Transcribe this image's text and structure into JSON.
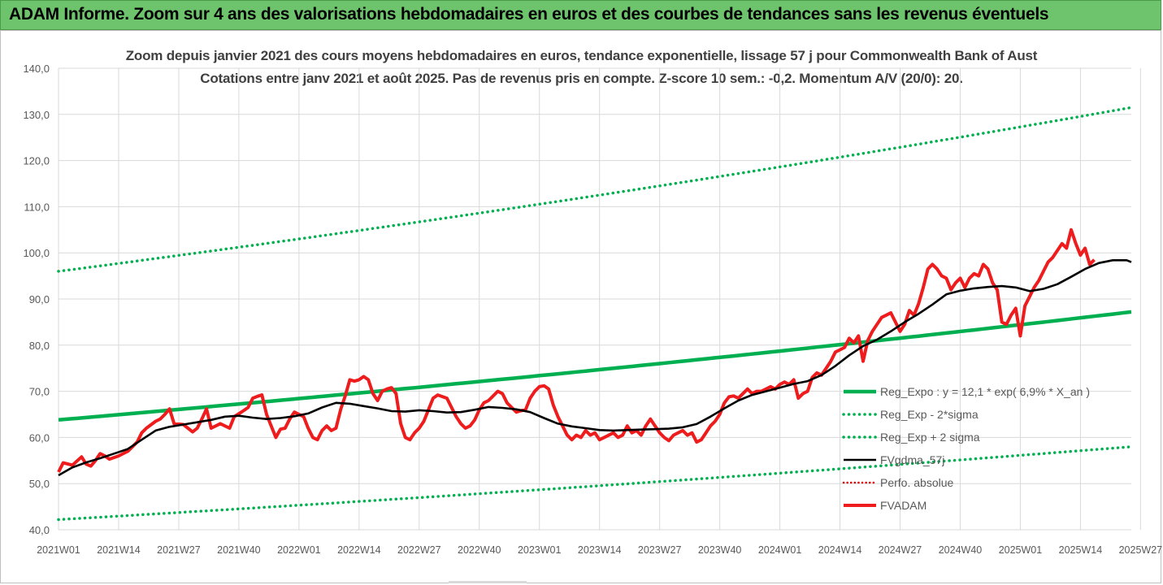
{
  "header": {
    "title": "ADAM Informe. Zoom sur 4 ans des valorisations hebdomadaires en euros et des courbes de tendances sans les revenus éventuels"
  },
  "chart_data": {
    "type": "line",
    "title": "Zoom depuis janvier 2021 des cours moyens hebdomadaires en euros, tendance exponentielle, lissage 57 j pour Commonwealth Bank of Aust",
    "subtitle": "Cotations entre janv 2021 et août 2025.  Pas de revenus pris en compte. Z-score 10 sem.: -0,2. Momentum A/V (20/0): 20.",
    "ylim": [
      40,
      140
    ],
    "yticks": [
      "40,0",
      "50,0",
      "60,0",
      "70,0",
      "80,0",
      "90,0",
      "100,0",
      "110,0",
      "120,0",
      "130,0",
      "140,0"
    ],
    "xticks": [
      "2021W01",
      "2021W14",
      "2021W27",
      "2021W40",
      "2022W01",
      "2022W14",
      "2022W27",
      "2022W40",
      "2023W01",
      "2023W14",
      "2023W27",
      "2023W40",
      "2024W01",
      "2024W14",
      "2024W27",
      "2024W40",
      "2025W01",
      "2025W14",
      "2025W27"
    ],
    "grid": true,
    "legend_position": "right",
    "series": [
      {
        "name": "Reg_Expo : y = 12,1 * exp( 6,9% *  X_an )",
        "color": "#00b050",
        "style": "solid",
        "start": 63.8,
        "end": 87.2
      },
      {
        "name": "Reg_Exp - 2*sigma",
        "color": "#00b050",
        "style": "dotted",
        "start": 42.2,
        "end": 58.0
      },
      {
        "name": "Reg_Exp + 2 sigma",
        "color": "#00b050",
        "style": "dotted",
        "start": 96.0,
        "end": 131.5
      },
      {
        "name": "FVgdma_57j",
        "color": "#000000",
        "style": "solid",
        "points": [
          [
            0,
            51.8
          ],
          [
            3,
            53.5
          ],
          [
            6,
            54.6
          ],
          [
            9,
            55.5
          ],
          [
            12,
            56.5
          ],
          [
            15,
            57.5
          ],
          [
            18,
            59.5
          ],
          [
            21,
            61.5
          ],
          [
            24,
            62.3
          ],
          [
            27,
            62.8
          ],
          [
            30,
            63.3
          ],
          [
            33,
            63.8
          ],
          [
            36,
            64.5
          ],
          [
            39,
            64.7
          ],
          [
            42,
            64.3
          ],
          [
            45,
            64.0
          ],
          [
            48,
            64.2
          ],
          [
            51,
            64.6
          ],
          [
            54,
            65.2
          ],
          [
            57,
            66.5
          ],
          [
            60,
            67.5
          ],
          [
            63,
            67.3
          ],
          [
            66,
            66.8
          ],
          [
            69,
            66.3
          ],
          [
            72,
            65.7
          ],
          [
            75,
            65.6
          ],
          [
            78,
            65.9
          ],
          [
            81,
            65.7
          ],
          [
            84,
            65.4
          ],
          [
            87,
            65.5
          ],
          [
            90,
            66.0
          ],
          [
            93,
            66.6
          ],
          [
            96,
            66.4
          ],
          [
            99,
            66.1
          ],
          [
            102,
            65.5
          ],
          [
            105,
            64.2
          ],
          [
            108,
            63.0
          ],
          [
            111,
            62.4
          ],
          [
            114,
            62.0
          ],
          [
            117,
            61.6
          ],
          [
            120,
            61.5
          ],
          [
            123,
            61.6
          ],
          [
            126,
            61.7
          ],
          [
            129,
            61.8
          ],
          [
            132,
            61.9
          ],
          [
            135,
            62.2
          ],
          [
            138,
            62.9
          ],
          [
            141,
            64.5
          ],
          [
            144,
            66.3
          ],
          [
            147,
            68.0
          ],
          [
            150,
            69.2
          ],
          [
            153,
            70.0
          ],
          [
            156,
            70.8
          ],
          [
            159,
            71.6
          ],
          [
            162,
            72.2
          ],
          [
            165,
            73.5
          ],
          [
            168,
            75.5
          ],
          [
            171,
            77.8
          ],
          [
            174,
            79.8
          ],
          [
            177,
            81.2
          ],
          [
            180,
            83.0
          ],
          [
            183,
            85.0
          ],
          [
            186,
            86.8
          ],
          [
            189,
            88.8
          ],
          [
            192,
            91.0
          ],
          [
            195,
            91.8
          ],
          [
            198,
            92.3
          ],
          [
            201,
            92.6
          ],
          [
            204,
            92.8
          ],
          [
            207,
            92.5
          ],
          [
            210,
            91.7
          ],
          [
            213,
            92.2
          ],
          [
            216,
            93.2
          ],
          [
            219,
            94.8
          ],
          [
            222,
            96.5
          ],
          [
            225,
            97.8
          ],
          [
            228,
            98.4
          ],
          [
            231,
            98.4
          ],
          [
            232,
            98.0
          ]
        ]
      },
      {
        "name": "Perfo. absolue",
        "color": "#e00000",
        "style": "dotted",
        "points": []
      },
      {
        "name": "FVADAM",
        "color": "#ee1c1c",
        "style": "solid",
        "points": [
          [
            0,
            52.5
          ],
          [
            1,
            54.5
          ],
          [
            3,
            54.0
          ],
          [
            5,
            55.8
          ],
          [
            6,
            54.2
          ],
          [
            7,
            53.8
          ],
          [
            8,
            55.0
          ],
          [
            9,
            56.5
          ],
          [
            10,
            56.0
          ],
          [
            11,
            55.3
          ],
          [
            13,
            56.0
          ],
          [
            15,
            57.0
          ],
          [
            16,
            58.0
          ],
          [
            17,
            59.0
          ],
          [
            18,
            61.0
          ],
          [
            19,
            62.0
          ],
          [
            21,
            63.5
          ],
          [
            22,
            64.0
          ],
          [
            23,
            65.0
          ],
          [
            24,
            66.2
          ],
          [
            25,
            63.0
          ],
          [
            27,
            62.8
          ],
          [
            29,
            61.2
          ],
          [
            30,
            62.0
          ],
          [
            31,
            64.0
          ],
          [
            32,
            66.2
          ],
          [
            33,
            62.0
          ],
          [
            35,
            63.0
          ],
          [
            37,
            62.0
          ],
          [
            38,
            64.5
          ],
          [
            40,
            65.8
          ],
          [
            41,
            66.5
          ],
          [
            42,
            68.5
          ],
          [
            43,
            68.9
          ],
          [
            44,
            69.2
          ],
          [
            45,
            65.0
          ],
          [
            46,
            62.5
          ],
          [
            47,
            60.0
          ],
          [
            48,
            61.8
          ],
          [
            49,
            62.0
          ],
          [
            50,
            64.0
          ],
          [
            51,
            65.5
          ],
          [
            52,
            65.0
          ],
          [
            53,
            64.5
          ],
          [
            54,
            62.0
          ],
          [
            55,
            60.0
          ],
          [
            56,
            59.5
          ],
          [
            57,
            61.5
          ],
          [
            58,
            62.5
          ],
          [
            59,
            61.5
          ],
          [
            60,
            62.0
          ],
          [
            61,
            66.0
          ],
          [
            62,
            69.0
          ],
          [
            63,
            72.5
          ],
          [
            64,
            72.2
          ],
          [
            65,
            72.5
          ],
          [
            66,
            73.2
          ],
          [
            67,
            72.5
          ],
          [
            68,
            69.5
          ],
          [
            69,
            68.0
          ],
          [
            70,
            70.0
          ],
          [
            71,
            70.5
          ],
          [
            72,
            70.8
          ],
          [
            73,
            69.5
          ],
          [
            74,
            63.0
          ],
          [
            75,
            60.0
          ],
          [
            76,
            59.5
          ],
          [
            77,
            61.0
          ],
          [
            78,
            62.0
          ],
          [
            79,
            63.5
          ],
          [
            80,
            66.0
          ],
          [
            81,
            68.5
          ],
          [
            82,
            69.2
          ],
          [
            84,
            68.5
          ],
          [
            85,
            66.5
          ],
          [
            86,
            64.5
          ],
          [
            87,
            63.0
          ],
          [
            88,
            62.0
          ],
          [
            89,
            62.5
          ],
          [
            90,
            63.8
          ],
          [
            91,
            66.0
          ],
          [
            92,
            67.5
          ],
          [
            93,
            68.0
          ],
          [
            94,
            69.0
          ],
          [
            95,
            70.0
          ],
          [
            96,
            69.5
          ],
          [
            97,
            67.5
          ],
          [
            98,
            66.5
          ],
          [
            99,
            65.5
          ],
          [
            100,
            65.8
          ],
          [
            101,
            66.0
          ],
          [
            102,
            68.5
          ],
          [
            103,
            70.0
          ],
          [
            104,
            71.0
          ],
          [
            105,
            71.2
          ],
          [
            106,
            70.5
          ],
          [
            107,
            67.0
          ],
          [
            108,
            64.5
          ],
          [
            109,
            62.5
          ],
          [
            110,
            60.5
          ],
          [
            111,
            59.5
          ],
          [
            112,
            60.5
          ],
          [
            113,
            60.0
          ],
          [
            114,
            61.5
          ],
          [
            115,
            60.5
          ],
          [
            116,
            61.0
          ],
          [
            117,
            59.5
          ],
          [
            118,
            60.0
          ],
          [
            119,
            60.5
          ],
          [
            120,
            61.0
          ],
          [
            121,
            60.0
          ],
          [
            122,
            60.5
          ],
          [
            123,
            62.5
          ],
          [
            124,
            61.0
          ],
          [
            125,
            61.5
          ],
          [
            126,
            60.5
          ],
          [
            127,
            62.5
          ],
          [
            128,
            64.0
          ],
          [
            129,
            62.5
          ],
          [
            130,
            61.0
          ],
          [
            131,
            60.0
          ],
          [
            132,
            59.3
          ],
          [
            133,
            60.5
          ],
          [
            134,
            61.0
          ],
          [
            135,
            61.5
          ],
          [
            136,
            60.5
          ],
          [
            137,
            61.0
          ],
          [
            138,
            59.0
          ],
          [
            139,
            59.5
          ],
          [
            140,
            61.0
          ],
          [
            141,
            62.5
          ],
          [
            142,
            63.5
          ],
          [
            143,
            65.0
          ],
          [
            144,
            67.5
          ],
          [
            145,
            68.8
          ],
          [
            146,
            69.0
          ],
          [
            147,
            68.5
          ],
          [
            148,
            69.5
          ],
          [
            149,
            70.5
          ],
          [
            150,
            69.5
          ],
          [
            151,
            70.0
          ],
          [
            152,
            70.0
          ],
          [
            153,
            70.5
          ],
          [
            154,
            71.0
          ],
          [
            155,
            70.5
          ],
          [
            156,
            71.5
          ],
          [
            157,
            72.0
          ],
          [
            158,
            71.5
          ],
          [
            159,
            72.5
          ],
          [
            160,
            68.5
          ],
          [
            161,
            69.5
          ],
          [
            162,
            70.0
          ],
          [
            163,
            73.0
          ],
          [
            164,
            74.0
          ],
          [
            165,
            73.5
          ],
          [
            166,
            75.0
          ],
          [
            167,
            76.5
          ],
          [
            168,
            78.5
          ],
          [
            169,
            79.0
          ],
          [
            170,
            79.5
          ],
          [
            171,
            81.5
          ],
          [
            172,
            80.5
          ],
          [
            173,
            82.0
          ],
          [
            174,
            76.5
          ],
          [
            175,
            81.0
          ],
          [
            176,
            83.0
          ],
          [
            177,
            84.5
          ],
          [
            178,
            86.0
          ],
          [
            179,
            86.5
          ],
          [
            180,
            87.0
          ],
          [
            181,
            85.0
          ],
          [
            182,
            83.0
          ],
          [
            183,
            84.5
          ],
          [
            184,
            87.5
          ],
          [
            185,
            86.5
          ],
          [
            186,
            89.0
          ],
          [
            187,
            92.5
          ],
          [
            188,
            96.5
          ],
          [
            189,
            97.5
          ],
          [
            190,
            96.5
          ],
          [
            191,
            95.0
          ],
          [
            192,
            94.5
          ],
          [
            193,
            92.0
          ],
          [
            194,
            93.5
          ],
          [
            195,
            94.5
          ],
          [
            196,
            92.5
          ],
          [
            197,
            94.5
          ],
          [
            198,
            95.5
          ],
          [
            199,
            95.0
          ],
          [
            200,
            97.5
          ],
          [
            201,
            96.5
          ],
          [
            202,
            93.5
          ],
          [
            203,
            92.0
          ],
          [
            204,
            85.0
          ],
          [
            205,
            84.5
          ],
          [
            206,
            86.5
          ],
          [
            207,
            88.0
          ],
          [
            208,
            82.0
          ],
          [
            209,
            88.5
          ],
          [
            210,
            90.5
          ],
          [
            211,
            92.5
          ],
          [
            212,
            94.0
          ],
          [
            213,
            96.0
          ],
          [
            214,
            98.0
          ],
          [
            215,
            99.0
          ],
          [
            216,
            100.5
          ],
          [
            217,
            102.0
          ],
          [
            218,
            101.0
          ],
          [
            219,
            105.0
          ],
          [
            220,
            102.0
          ],
          [
            221,
            99.5
          ],
          [
            222,
            101.0
          ],
          [
            223,
            97.5
          ],
          [
            224,
            98.5
          ]
        ]
      }
    ]
  }
}
